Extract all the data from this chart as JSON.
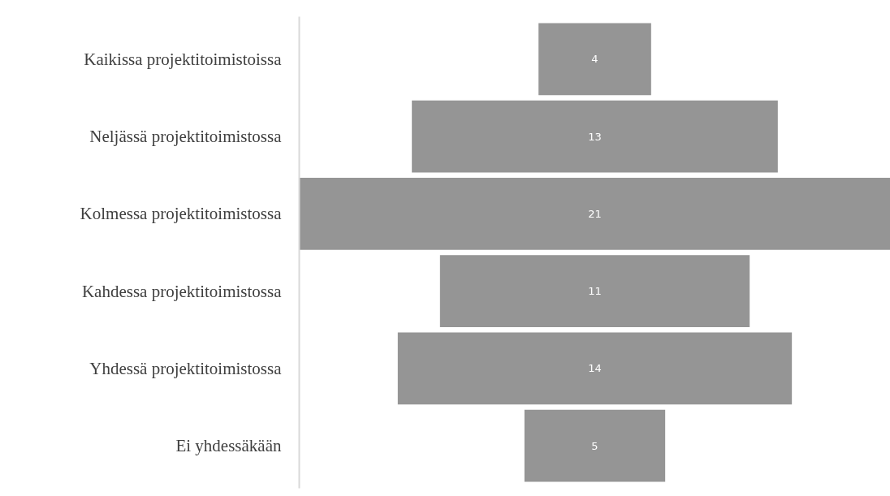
{
  "chart_data": {
    "type": "other",
    "categories": [
      "Kaikissa projektitoimistoissa",
      "Neljässä projektitoimistossa",
      "Kolmessa projektitoimistossa",
      "Kahdessa projektitoimistossa",
      "Yhdessä projektitoimistossa",
      "Ei yhdessäkään"
    ],
    "values": [
      4,
      13,
      21,
      11,
      14,
      5
    ],
    "color": "#959595",
    "data_labels": true
  }
}
